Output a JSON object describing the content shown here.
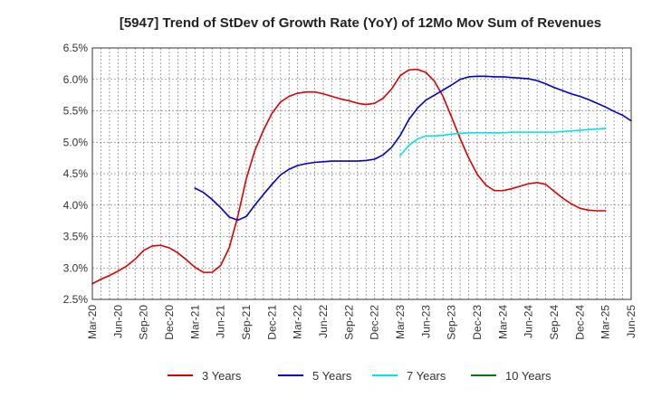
{
  "chart_data": {
    "type": "line",
    "title": "[5947]  Trend of StDev of Growth Rate (YoY) of 12Mo Mov Sum of Revenues",
    "xlabel": "",
    "ylabel": "",
    "ylim": [
      2.5,
      6.5
    ],
    "y_ticks": [
      2.5,
      3.0,
      3.5,
      4.0,
      4.5,
      5.0,
      5.5,
      6.0,
      6.5
    ],
    "y_tick_labels": [
      "2.5%",
      "3.0%",
      "3.5%",
      "4.0%",
      "4.5%",
      "5.0%",
      "5.5%",
      "6.0%",
      "6.5%"
    ],
    "x_start": "Mar-20",
    "x_tick_labels": [
      "Mar-20",
      "Jun-20",
      "Sep-20",
      "Dec-20",
      "Mar-21",
      "Jun-21",
      "Sep-21",
      "Dec-21",
      "Mar-22",
      "Jun-22",
      "Sep-22",
      "Dec-22",
      "Mar-23",
      "Jun-23",
      "Sep-23",
      "Dec-23",
      "Mar-24",
      "Jun-24",
      "Sep-24",
      "Dec-24",
      "Mar-25",
      "Jun-25"
    ],
    "grid": true,
    "legend_position": "bottom",
    "series": [
      {
        "name": "3 Years",
        "color": "#dd0000",
        "start_index": 0,
        "values": [
          2.75,
          2.82,
          2.88,
          2.95,
          3.03,
          3.14,
          3.28,
          3.35,
          3.36,
          3.32,
          3.24,
          3.13,
          3.01,
          2.93,
          2.93,
          3.04,
          3.32,
          3.82,
          4.42,
          4.87,
          5.19,
          5.46,
          5.64,
          5.73,
          5.78,
          5.8,
          5.8,
          5.77,
          5.73,
          5.69,
          5.66,
          5.62,
          5.6,
          5.62,
          5.7,
          5.85,
          6.06,
          6.15,
          6.16,
          6.11,
          5.97,
          5.73,
          5.4,
          5.06,
          4.75,
          4.49,
          4.32,
          4.23,
          4.23,
          4.26,
          4.3,
          4.34,
          4.36,
          4.33,
          4.22,
          4.11,
          4.02,
          3.95,
          3.92,
          3.91,
          3.91
        ]
      },
      {
        "name": "5 Years",
        "color": "#0000cc",
        "start_index": 12,
        "values": [
          4.27,
          4.2,
          4.09,
          3.96,
          3.81,
          3.76,
          3.82,
          4.0,
          4.17,
          4.33,
          4.48,
          4.57,
          4.63,
          4.66,
          4.68,
          4.69,
          4.7,
          4.7,
          4.7,
          4.7,
          4.71,
          4.73,
          4.8,
          4.92,
          5.11,
          5.36,
          5.54,
          5.67,
          5.75,
          5.83,
          5.91,
          6.0,
          6.04,
          6.05,
          6.05,
          6.04,
          6.04,
          6.03,
          6.02,
          6.01,
          5.98,
          5.93,
          5.87,
          5.82,
          5.77,
          5.73,
          5.68,
          5.62,
          5.56,
          5.49,
          5.43,
          5.34
        ]
      },
      {
        "name": "7 Years",
        "color": "#00e5e5",
        "start_index": 36,
        "values": [
          4.79,
          4.95,
          5.05,
          5.1,
          5.1,
          5.11,
          5.13,
          5.14,
          5.15,
          5.15,
          5.15,
          5.15,
          5.15,
          5.16,
          5.16,
          5.16,
          5.16,
          5.16,
          5.16,
          5.17,
          5.18,
          5.19,
          5.2,
          5.21,
          5.22
        ]
      },
      {
        "name": "10 Years",
        "color": "#008000",
        "start_index": 0,
        "values": []
      }
    ]
  }
}
